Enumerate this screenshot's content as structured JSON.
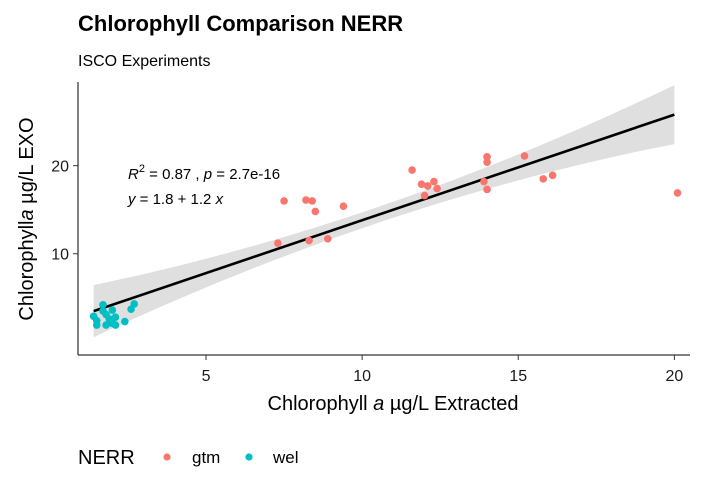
{
  "chart_data": {
    "type": "scatter",
    "title": "Chlorophyll Comparison NERR",
    "subtitle": "ISCO Experiments",
    "xlabel": {
      "pre": "Chlorophyll ",
      "italic": "a",
      "post": " µg/L Extracted"
    },
    "ylabel": {
      "pre": "Chlorophyll",
      "italic": "a",
      "post": " µg/L EXO"
    },
    "xlim": [
      0.9,
      20.5
    ],
    "ylim": [
      -1.5,
      29.5
    ],
    "xticks": [
      5,
      10,
      15,
      20
    ],
    "yticks": [
      10,
      20
    ],
    "grid": false,
    "legend": {
      "title": "NERR",
      "position": "bottom",
      "entries": [
        {
          "label": "gtm",
          "color": "#F8766D"
        },
        {
          "label": "wel",
          "color": "#00BFC4"
        }
      ]
    },
    "annotation": {
      "line1": {
        "r2_label": "R",
        "r2_sup": "2",
        "r2_value": " = 0.87 ,  ",
        "p_label": "p",
        "p_value": " = 2.7e-16"
      },
      "line2": {
        "y": "y",
        "mid": " = 1.8 + 1.2 ",
        "x": "x"
      }
    },
    "fit": {
      "intercept": 1.8,
      "slope": 1.2,
      "x_range": [
        1.4,
        20.0
      ],
      "color": "#000000",
      "band_color": "#d9d9d9"
    },
    "series": [
      {
        "name": "gtm",
        "color": "#F8766D",
        "points": [
          [
            7.3,
            11.2
          ],
          [
            7.5,
            16.0
          ],
          [
            8.2,
            16.1
          ],
          [
            8.3,
            11.5
          ],
          [
            8.4,
            16.0
          ],
          [
            8.5,
            14.8
          ],
          [
            8.9,
            11.7
          ],
          [
            9.4,
            15.4
          ],
          [
            11.6,
            19.5
          ],
          [
            11.9,
            17.9
          ],
          [
            12.0,
            16.6
          ],
          [
            12.1,
            17.7
          ],
          [
            12.3,
            18.2
          ],
          [
            12.4,
            17.4
          ],
          [
            13.9,
            18.2
          ],
          [
            14.0,
            21.0
          ],
          [
            14.0,
            20.4
          ],
          [
            14.0,
            17.3
          ],
          [
            15.2,
            21.1
          ],
          [
            15.8,
            18.5
          ],
          [
            16.1,
            18.9
          ],
          [
            20.1,
            16.9
          ]
        ]
      },
      {
        "name": "wel",
        "color": "#00BFC4",
        "points": [
          [
            1.4,
            2.9
          ],
          [
            1.5,
            2.4
          ],
          [
            1.5,
            1.9
          ],
          [
            1.7,
            3.5
          ],
          [
            1.7,
            4.2
          ],
          [
            1.8,
            3.1
          ],
          [
            1.8,
            1.9
          ],
          [
            1.9,
            2.6
          ],
          [
            2.0,
            3.6
          ],
          [
            2.0,
            2.1
          ],
          [
            2.1,
            1.9
          ],
          [
            2.1,
            2.8
          ],
          [
            2.4,
            2.3
          ],
          [
            2.6,
            3.7
          ],
          [
            2.7,
            4.3
          ]
        ]
      }
    ]
  }
}
